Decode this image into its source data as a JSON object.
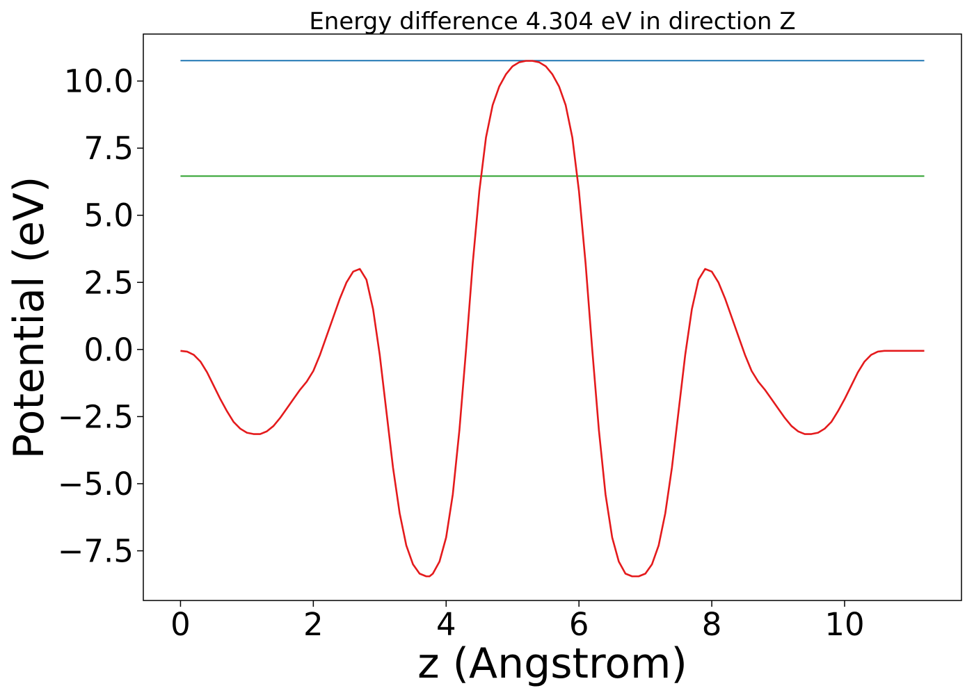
{
  "chart_data": {
    "type": "line",
    "title": "Energy difference 4.304 eV in direction Z",
    "xlabel": "z (Angstrom)",
    "ylabel": "Potential (eV)",
    "xlim": [
      -0.56,
      11.76
    ],
    "ylim": [
      -9.35,
      11.75
    ],
    "grid": false,
    "xticks": [
      0,
      2,
      4,
      6,
      8,
      10
    ],
    "xtick_labels": [
      "0",
      "2",
      "4",
      "6",
      "8",
      "10"
    ],
    "yticks": [
      -7.5,
      -5.0,
      -2.5,
      0.0,
      2.5,
      5.0,
      7.5,
      10.0
    ],
    "ytick_labels": [
      "−7.5",
      "−5.0",
      "−2.5",
      "0.0",
      "2.5",
      "5.0",
      "7.5",
      "10.0"
    ],
    "series": [
      {
        "color": "#1f77b4",
        "x": [
          0,
          11.2
        ],
        "y": [
          10.76,
          10.76
        ]
      },
      {
        "color": "#2ca02c",
        "x": [
          0,
          11.2
        ],
        "y": [
          6.46,
          6.46
        ]
      },
      {
        "color": "#e41a1c",
        "x": [
          0,
          0.1,
          0.2,
          0.3,
          0.4,
          0.5,
          0.6,
          0.7,
          0.8,
          0.9,
          1.0,
          1.1,
          1.2,
          1.3,
          1.4,
          1.5,
          1.6,
          1.7,
          1.8,
          1.9,
          2.0,
          2.1,
          2.2,
          2.3,
          2.4,
          2.5,
          2.6,
          2.7,
          2.8,
          2.9,
          3.0,
          3.1,
          3.2,
          3.3,
          3.4,
          3.5,
          3.6,
          3.7,
          3.75,
          3.8,
          3.9,
          4.0,
          4.1,
          4.2,
          4.3,
          4.4,
          4.5,
          4.6,
          4.7,
          4.8,
          4.9,
          5.0,
          5.1,
          5.2,
          5.3,
          5.4,
          5.5,
          5.6,
          5.7,
          5.8,
          5.9,
          6.0,
          6.1,
          6.2,
          6.3,
          6.4,
          6.5,
          6.6,
          6.7,
          6.8,
          6.9,
          7.0,
          7.1,
          7.2,
          7.3,
          7.4,
          7.5,
          7.6,
          7.7,
          7.8,
          7.9,
          8.0,
          8.1,
          8.2,
          8.3,
          8.4,
          8.5,
          8.6,
          8.7,
          8.8,
          8.9,
          9.0,
          9.1,
          9.2,
          9.3,
          9.4,
          9.5,
          9.6,
          9.7,
          9.8,
          9.9,
          10.0,
          10.1,
          10.2,
          10.3,
          10.4,
          10.5,
          10.6,
          10.7,
          10.8,
          10.9,
          11.0,
          11.1,
          11.2
        ],
        "y": [
          -0.05,
          -0.08,
          -0.2,
          -0.45,
          -0.85,
          -1.35,
          -1.85,
          -2.3,
          -2.7,
          -2.95,
          -3.1,
          -3.15,
          -3.15,
          -3.05,
          -2.85,
          -2.55,
          -2.2,
          -1.85,
          -1.5,
          -1.2,
          -0.8,
          -0.2,
          0.5,
          1.2,
          1.9,
          2.5,
          2.9,
          3.0,
          2.6,
          1.5,
          -0.2,
          -2.3,
          -4.4,
          -6.1,
          -7.3,
          -8.0,
          -8.35,
          -8.45,
          -8.45,
          -8.35,
          -7.9,
          -7.0,
          -5.4,
          -3.0,
          0.0,
          3.2,
          5.9,
          7.9,
          9.1,
          9.8,
          10.25,
          10.55,
          10.7,
          10.75,
          10.75,
          10.7,
          10.55,
          10.25,
          9.8,
          9.1,
          7.9,
          5.9,
          3.2,
          0.0,
          -3.0,
          -5.4,
          -7.0,
          -7.9,
          -8.35,
          -8.45,
          -8.45,
          -8.35,
          -8.0,
          -7.3,
          -6.1,
          -4.4,
          -2.3,
          -0.2,
          1.5,
          2.6,
          3.0,
          2.9,
          2.5,
          1.9,
          1.2,
          0.5,
          -0.2,
          -0.8,
          -1.2,
          -1.5,
          -1.85,
          -2.2,
          -2.55,
          -2.85,
          -3.05,
          -3.15,
          -3.15,
          -3.1,
          -2.95,
          -2.7,
          -2.3,
          -1.85,
          -1.35,
          -0.85,
          -0.45,
          -0.2,
          -0.08,
          -0.05,
          -0.05,
          -0.05,
          -0.05,
          -0.05,
          -0.05,
          -0.05
        ]
      }
    ]
  }
}
